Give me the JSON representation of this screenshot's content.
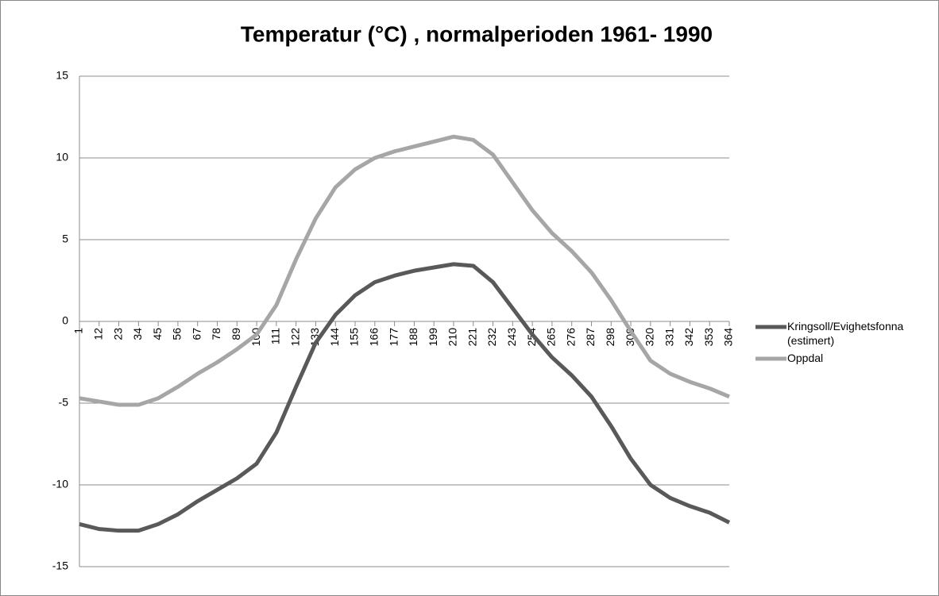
{
  "chart_data": {
    "type": "line",
    "title": "Temperatur (°C) , normalperioden 1961- 1990",
    "x": [
      1,
      12,
      23,
      34,
      45,
      56,
      67,
      78,
      89,
      100,
      111,
      122,
      133,
      144,
      155,
      166,
      177,
      188,
      199,
      210,
      221,
      232,
      243,
      254,
      265,
      276,
      287,
      298,
      309,
      320,
      331,
      342,
      353,
      364
    ],
    "series": [
      {
        "name": "Kringsoll/Evighetsfonna (estimert)",
        "color": "#595959",
        "values": [
          -12.4,
          -12.7,
          -12.8,
          -12.8,
          -12.4,
          -11.8,
          -11.0,
          -10.3,
          -9.6,
          -8.7,
          -6.8,
          -4.0,
          -1.3,
          0.4,
          1.6,
          2.4,
          2.8,
          3.1,
          3.3,
          3.5,
          3.4,
          2.4,
          0.8,
          -0.8,
          -2.2,
          -3.3,
          -4.6,
          -6.4,
          -8.4,
          -10.0,
          -10.8,
          -11.3,
          -11.7,
          -12.3
        ]
      },
      {
        "name": "Oppdal",
        "color": "#a6a6a6",
        "values": [
          -4.7,
          -4.9,
          -5.1,
          -5.1,
          -4.7,
          -4.0,
          -3.2,
          -2.5,
          -1.7,
          -0.8,
          1.0,
          3.8,
          6.3,
          8.2,
          9.3,
          10.0,
          10.4,
          10.7,
          11.0,
          11.3,
          11.1,
          10.2,
          8.5,
          6.8,
          5.4,
          4.3,
          3.0,
          1.3,
          -0.6,
          -2.4,
          -3.2,
          -3.7,
          -4.1,
          -4.6
        ]
      }
    ],
    "xlim": [
      1,
      364
    ],
    "xticks": [
      1,
      12,
      23,
      34,
      45,
      56,
      67,
      78,
      89,
      100,
      111,
      122,
      133,
      144,
      155,
      166,
      177,
      188,
      199,
      210,
      221,
      232,
      243,
      254,
      265,
      276,
      287,
      298,
      309,
      320,
      331,
      342,
      353,
      364
    ],
    "ylim": [
      -15,
      15
    ],
    "yticks": [
      -15,
      -10,
      -5,
      0,
      5,
      10,
      15
    ],
    "grid": true,
    "legend": "right"
  }
}
